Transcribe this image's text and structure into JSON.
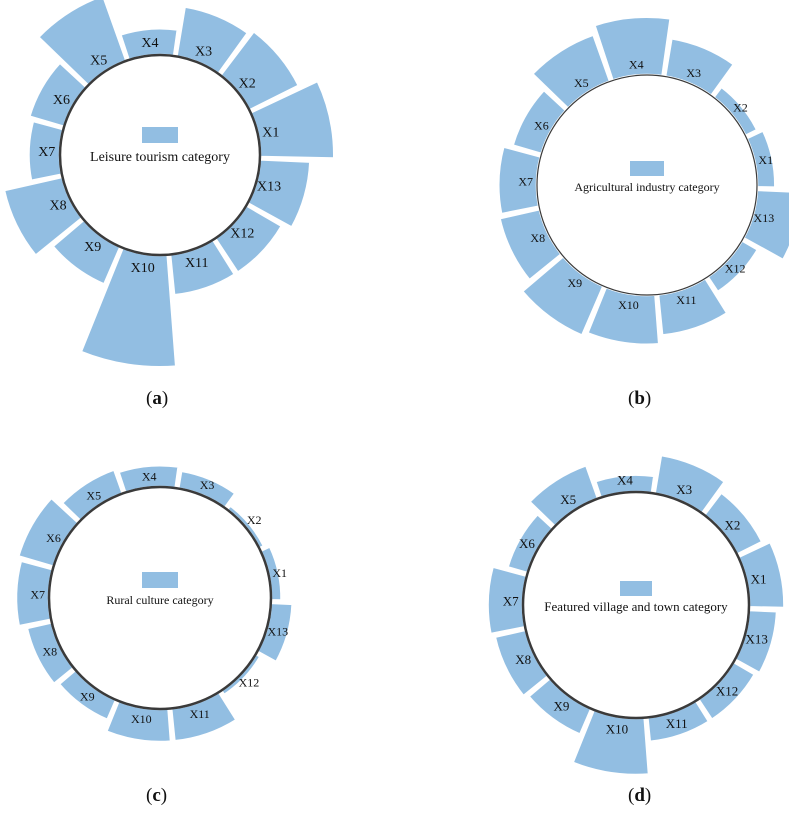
{
  "panels": [
    {
      "id": "a",
      "label_open": "(",
      "label_letter": "a",
      "label_close": ")",
      "legend": "Leisure tourism category"
    },
    {
      "id": "b",
      "label_open": "(",
      "label_letter": "b",
      "label_close": ")",
      "legend": "Agricultural industry category"
    },
    {
      "id": "c",
      "label_open": "(",
      "label_letter": "c",
      "label_close": ")",
      "legend": "Rural culture category"
    },
    {
      "id": "d",
      "label_open": "(",
      "label_letter": "d",
      "label_close": ")",
      "legend": "Featured village and town category"
    }
  ],
  "chart_data": [
    {
      "type": "radial_bar",
      "legend": "Leisure tourism category",
      "categories": [
        "X1",
        "X2",
        "X3",
        "X4",
        "X5",
        "X6",
        "X7",
        "X8",
        "X9",
        "X10",
        "X11",
        "X12",
        "X13"
      ],
      "values": [
        75,
        55,
        50,
        25,
        70,
        35,
        30,
        60,
        40,
        115,
        40,
        40,
        50
      ],
      "color": "#92bee2"
    },
    {
      "type": "radial_bar",
      "legend": "Agricultural industry category",
      "categories": [
        "X1",
        "X2",
        "X3",
        "X4",
        "X5",
        "X6",
        "X7",
        "X8",
        "X9",
        "X10",
        "X11",
        "X12",
        "X13"
      ],
      "values": [
        18,
        12,
        42,
        65,
        55,
        32,
        42,
        45,
        60,
        55,
        45,
        18,
        50
      ],
      "color": "#92bee2"
    },
    {
      "type": "radial_bar",
      "legend": "Rural culture category",
      "categories": [
        "X1",
        "X2",
        "X3",
        "X4",
        "X5",
        "X6",
        "X7",
        "X8",
        "X9",
        "X10",
        "X11",
        "X12",
        "X13"
      ],
      "values": [
        10,
        3,
        20,
        25,
        30,
        45,
        40,
        30,
        25,
        40,
        40,
        3,
        25
      ],
      "color": "#92bee2"
    },
    {
      "type": "radial_bar",
      "legend": "Featured village and town category",
      "categories": [
        "X1",
        "X2",
        "X3",
        "X4",
        "X5",
        "X6",
        "X7",
        "X8",
        "X9",
        "X10",
        "X11",
        "X12",
        "X13"
      ],
      "values": [
        45,
        35,
        50,
        20,
        45,
        25,
        45,
        40,
        35,
        75,
        30,
        30,
        35
      ],
      "color": "#92bee2"
    }
  ]
}
